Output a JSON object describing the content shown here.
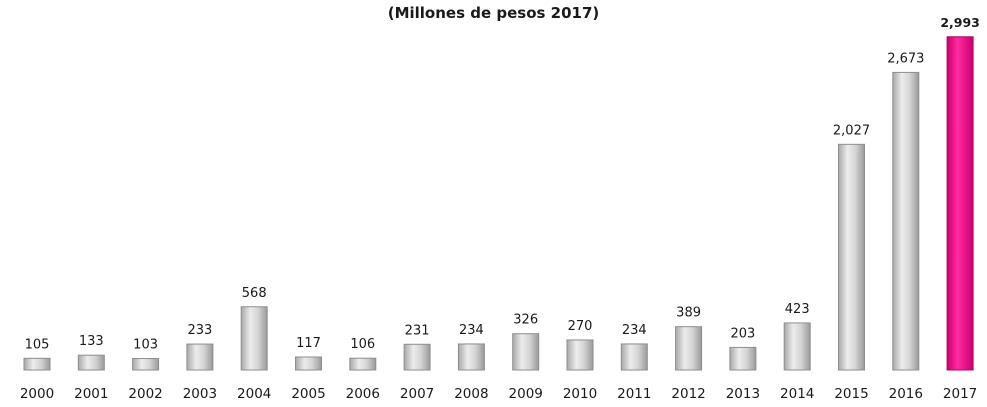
{
  "subtitle": "(Millones de pesos 2017)",
  "colors": {
    "bar": "#d2d2d2",
    "highlight": "#e6007e",
    "text": "#1a1a1a"
  },
  "chart_data": {
    "type": "bar",
    "title": "",
    "subtitle": "(Millones de pesos 2017)",
    "xlabel": "",
    "ylabel": "",
    "categories": [
      "2000",
      "2001",
      "2002",
      "2003",
      "2004",
      "2005",
      "2006",
      "2007",
      "2008",
      "2009",
      "2010",
      "2011",
      "2012",
      "2013",
      "2014",
      "2015",
      "2016",
      "2017"
    ],
    "values": [
      105,
      133,
      103,
      233,
      568,
      117,
      106,
      231,
      234,
      326,
      270,
      234,
      389,
      203,
      423,
      2027,
      2673,
      2993
    ],
    "value_labels": [
      "105",
      "133",
      "103",
      "233",
      "568",
      "117",
      "106",
      "231",
      "234",
      "326",
      "270",
      "234",
      "389",
      "203",
      "423",
      "2,027",
      "2,673",
      "2,993"
    ],
    "highlighted_category": "2017",
    "ylim": [
      0,
      3000
    ],
    "grid": false,
    "legend": "none"
  }
}
